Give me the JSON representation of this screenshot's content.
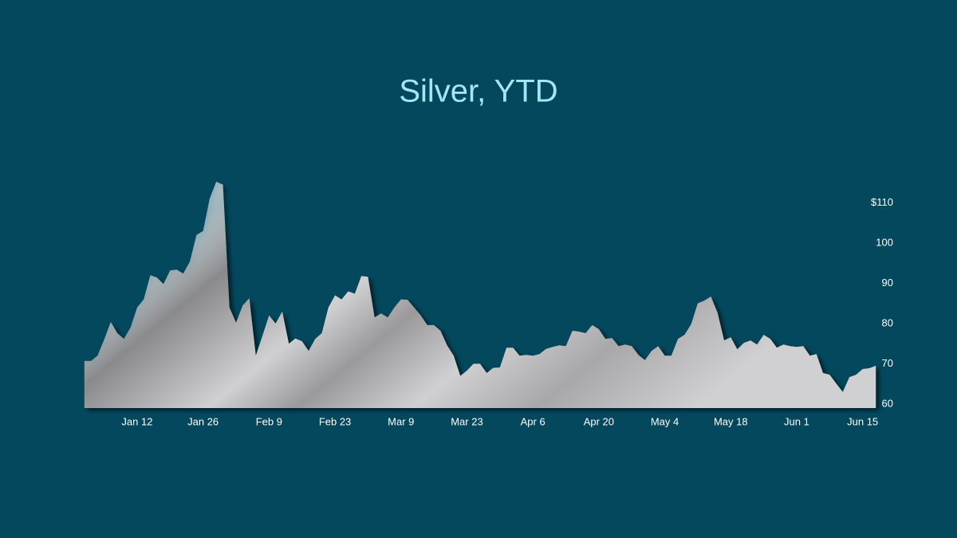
{
  "chart_data": {
    "type": "area",
    "title": "Silver, YTD",
    "color": "#d0d0d2",
    "categories": [
      null,
      null,
      null,
      null,
      null,
      null,
      null,
      null,
      "Jan 12",
      null,
      null,
      null,
      null,
      null,
      null,
      null,
      null,
      null,
      "Jan 26",
      null,
      null,
      null,
      null,
      null,
      null,
      null,
      null,
      null,
      "Feb 9",
      null,
      null,
      null,
      null,
      null,
      null,
      null,
      null,
      null,
      "Feb 23",
      null,
      null,
      null,
      null,
      null,
      null,
      null,
      null,
      null,
      "Mar 9",
      null,
      null,
      null,
      null,
      null,
      null,
      null,
      null,
      null,
      "Mar 23",
      null,
      null,
      null,
      null,
      null,
      null,
      null,
      null,
      null,
      "Apr 6",
      null,
      null,
      null,
      null,
      null,
      null,
      null,
      null,
      null,
      "Apr 20",
      null,
      null,
      null,
      null,
      null,
      null,
      null,
      null,
      null,
      "May 4",
      null,
      null,
      null,
      null,
      null,
      null,
      null,
      null,
      null,
      "May 18",
      null,
      null,
      null,
      null,
      null,
      null,
      null,
      null,
      null,
      "Jun 1",
      null,
      null,
      null,
      null,
      null,
      null,
      null,
      null,
      null,
      "Jun 15",
      null,
      null
    ],
    "values": [
      70.7,
      70.7,
      72,
      76,
      80.4,
      77.6,
      76.2,
      79,
      84,
      86,
      92,
      91.4,
      89.8,
      93.2,
      93.4,
      92.4,
      95.4,
      102,
      103,
      111,
      115.2,
      114.5,
      84,
      80.2,
      84.5,
      86.3,
      72,
      77,
      82,
      80,
      83,
      75,
      76.3,
      75.6,
      73.2,
      76.2,
      77.6,
      84,
      87,
      86,
      88,
      87.4,
      91.8,
      91.6,
      81.5,
      82.5,
      81.5,
      84,
      86,
      85.9,
      84,
      82,
      79.6,
      79.6,
      78.2,
      74.6,
      72,
      67,
      68.3,
      70,
      70,
      67.7,
      69,
      69.1,
      74,
      74,
      72,
      72.2,
      72,
      72.4,
      73.7,
      74.2,
      74.6,
      74.4,
      78.2,
      78,
      77.6,
      79.6,
      78.6,
      76.2,
      76.4,
      74.4,
      74.8,
      74.4,
      72.2,
      70.9,
      73.2,
      74.4,
      72,
      72,
      76.2,
      77.2,
      79.8,
      85,
      85.7,
      86.7,
      82.7,
      75.8,
      76.6,
      73.6,
      75.2,
      75.8,
      74.8,
      77.2,
      76.2,
      74,
      74.8,
      74.4,
      74.2,
      74.4,
      72,
      72.4,
      67.7,
      67.3,
      65.1,
      63,
      66.7,
      67.3,
      68.7,
      68.9,
      69.5
    ],
    "ylim": [
      59,
      116
    ],
    "yticks": [
      60,
      70,
      80,
      90,
      100,
      {
        "value": 110,
        "label": "$110"
      }
    ],
    "grid": false
  }
}
